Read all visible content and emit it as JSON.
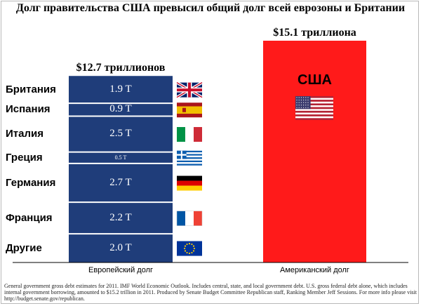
{
  "title": "Долг правительства США превысил общий долг всей еврозоны и Британии",
  "chart_data": {
    "type": "bar",
    "stacked": true,
    "categories": [
      "Европейский долг",
      "Американский долг"
    ],
    "totals": [
      "$12.7 триллионов",
      "$15.1 триллиона"
    ],
    "total_values": [
      12.7,
      15.1
    ],
    "unit": "T",
    "series": [
      {
        "name": "Британия",
        "values": [
          1.9,
          0
        ],
        "label": "1.9 T",
        "flag": "uk-flag-icon"
      },
      {
        "name": "Испания",
        "values": [
          0.9,
          0
        ],
        "label": "0.9 T",
        "flag": "spain-flag-icon"
      },
      {
        "name": "Италия",
        "values": [
          2.5,
          0
        ],
        "label": "2.5 T",
        "flag": "italy-flag-icon"
      },
      {
        "name": "Греция",
        "values": [
          0.5,
          0
        ],
        "label": "0.5 T",
        "flag": "greece-flag-icon"
      },
      {
        "name": "Германия",
        "values": [
          2.7,
          0
        ],
        "label": "2.7 T",
        "flag": "germany-flag-icon"
      },
      {
        "name": "Франция",
        "values": [
          2.2,
          0
        ],
        "label": "2.2 T",
        "flag": "france-flag-icon"
      },
      {
        "name": "Другие",
        "values": [
          2.0,
          0
        ],
        "label": "2.0 T",
        "flag": "eu-flag-icon"
      },
      {
        "name": "США",
        "values": [
          0,
          15.1
        ],
        "flag": "usa-flag-icon"
      }
    ],
    "colors": {
      "europe": "#1f3d7a",
      "usa": "#ff1a1a",
      "divider": "#ffffff"
    }
  },
  "labels": {
    "usa": "США",
    "europe_axis": "Европейский долг",
    "usa_axis": "Американский долг",
    "europe_total": "$12.7 триллионов",
    "usa_total": "$15.1 триллиона"
  },
  "footnote": "General government gross debt estimates for 2011. IMF World Economic Outlook. Includes central, state, and local government debt. U.S. gross federal debt alone, which includes internal government borrowing, amounted to $15.2 trillion in 2011. Produced by Senate Budget Committee Republican staff, Ranking Member Jeff Sessions. For more info please visit http://budget.senate.gov/republican."
}
